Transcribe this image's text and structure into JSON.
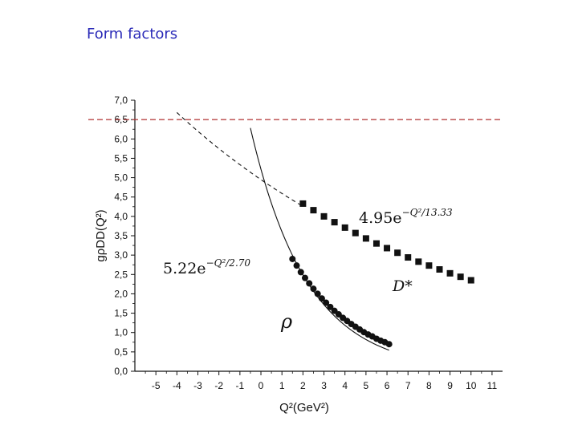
{
  "page": {
    "title": "Form factors"
  },
  "chart_data": {
    "type": "scatter",
    "title": "",
    "xlabel": "Q²(GeV²)",
    "ylabel": "gρDD(Q²)",
    "xlim": [
      -6,
      11.5
    ],
    "ylim": [
      0,
      7.0
    ],
    "xticks": [
      "-5",
      "-4",
      "-3",
      "-2",
      "-1",
      "0",
      "1",
      "2",
      "3",
      "4",
      "5",
      "6",
      "7",
      "8",
      "9",
      "10",
      "11"
    ],
    "yticks": [
      "0,0",
      "0,5",
      "1,0",
      "1,5",
      "2,0",
      "2,5",
      "3,0",
      "3,5",
      "4,0",
      "4,5",
      "5,0",
      "5,5",
      "6,0",
      "6,5",
      "7,0"
    ],
    "grid": false,
    "reference_line": {
      "y": 6.5,
      "style": "dashed",
      "color": "#b03030"
    },
    "series": [
      {
        "name": "ρ",
        "marker": "circle",
        "x": [
          1.5,
          1.7,
          1.9,
          2.1,
          2.3,
          2.5,
          2.7,
          2.9,
          3.1,
          3.3,
          3.5,
          3.7,
          3.9,
          4.1,
          4.3,
          4.5,
          4.7,
          4.9,
          5.1,
          5.3,
          5.5,
          5.7,
          5.9,
          6.1
        ],
        "y": [
          2.9,
          2.73,
          2.56,
          2.41,
          2.27,
          2.13,
          2.0,
          1.88,
          1.77,
          1.66,
          1.56,
          1.47,
          1.38,
          1.3,
          1.22,
          1.15,
          1.08,
          1.01,
          0.95,
          0.9,
          0.84,
          0.79,
          0.75,
          0.7
        ],
        "fit": {
          "label": "5.22e^{-Q^2/2.70}",
          "a": 5.22,
          "b": 2.7,
          "x_range": [
            -0.5,
            6.1
          ],
          "style": "solid"
        }
      },
      {
        "name": "D*",
        "marker": "square",
        "x": [
          2,
          2.5,
          3,
          3.5,
          4,
          4.5,
          5,
          5.5,
          6,
          6.5,
          7,
          7.5,
          8,
          8.5,
          9,
          9.5,
          10
        ],
        "y": [
          4.33,
          4.16,
          4.0,
          3.85,
          3.71,
          3.57,
          3.43,
          3.3,
          3.18,
          3.06,
          2.94,
          2.83,
          2.73,
          2.63,
          2.53,
          2.44,
          2.35
        ],
        "fit": {
          "label": "4.95e^{-Q^2/13.33}",
          "a": 4.95,
          "b": 13.33,
          "x_range": [
            -4,
            2
          ],
          "style": "dashed"
        }
      }
    ],
    "annotations": [
      {
        "text": "5.22e",
        "exponent": "−Q²/2.70",
        "near": "rho-fit"
      },
      {
        "text": "4.95e",
        "exponent": "−Q²/13.33",
        "near": "dstar-fit"
      },
      {
        "text": "D*",
        "near": "dstar-series"
      },
      {
        "text": "ρ",
        "near": "rho-series"
      }
    ]
  }
}
